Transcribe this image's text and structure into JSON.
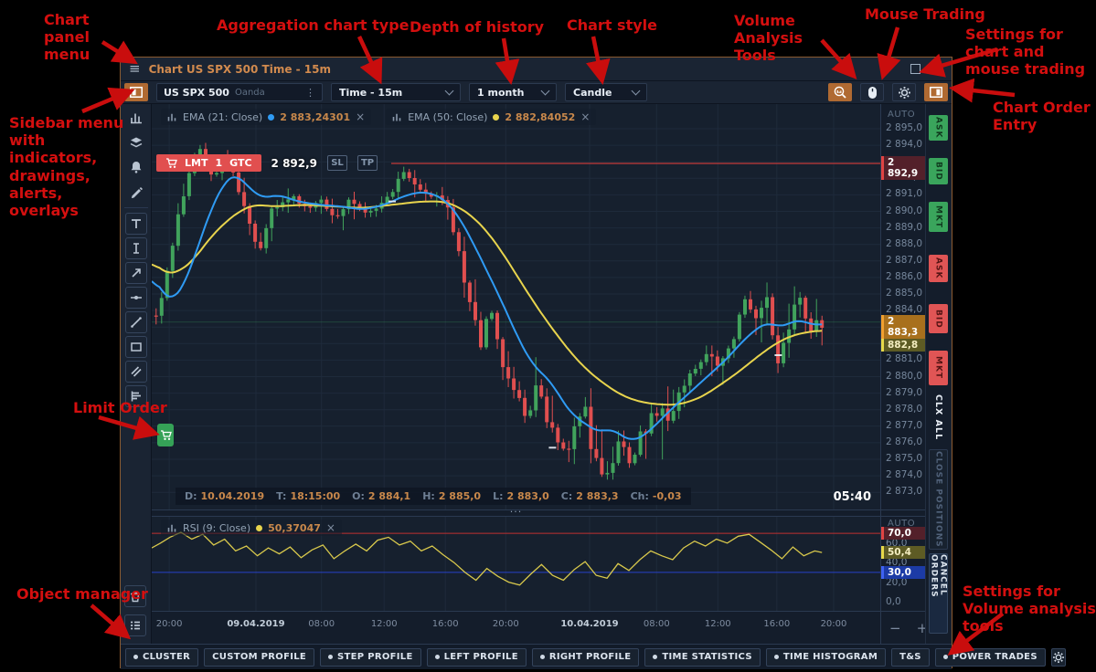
{
  "window": {
    "title": "Chart US SPX 500 Time - 15m"
  },
  "toolbar": {
    "symbol": {
      "name": "US SPX 500",
      "broker": "Oanda"
    },
    "aggregation": "Time - 15m",
    "history_depth": "1 month",
    "chart_style": "Candle"
  },
  "indicators": {
    "ema21": {
      "label": "EMA (21: Close)",
      "value": "2 883,24301",
      "color": "#2f9bf4"
    },
    "ema50": {
      "label": "EMA (50: Close)",
      "value": "2 882,84052",
      "color": "#e8d44d"
    },
    "rsi": {
      "label": "RSI (9: Close)",
      "value": "50,37047",
      "color": "#e8d44d"
    },
    "close_label": "×"
  },
  "order": {
    "type": "LMT",
    "qty": "1",
    "tif": "GTC",
    "price": "2 892,9",
    "sl": "SL",
    "tp": "TP"
  },
  "ohlc": [
    {
      "k": "D:",
      "v": "10.04.2019"
    },
    {
      "k": "T:",
      "v": "18:15:00"
    },
    {
      "k": "O:",
      "v": "2 884,1"
    },
    {
      "k": "H:",
      "v": "2 885,0"
    },
    {
      "k": "L:",
      "v": "2 883,0"
    },
    {
      "k": "C:",
      "v": "2 883,3"
    },
    {
      "k": "Ch:",
      "v": "-0,03"
    }
  ],
  "countdown": "05:40",
  "splitter_dots": "···",
  "price_axis": {
    "auto": "AUTO",
    "zoom_out": "−",
    "zoom_in": "+"
  },
  "rsi_axis": {
    "auto": "AUTO"
  },
  "trade_buttons": {
    "ask": "ASK",
    "bid": "BID",
    "mkt": "MKT",
    "clx": "CLX ALL",
    "close_positions": "CLOSE POSITIONS",
    "cancel_orders": "CANCEL ORDERS"
  },
  "volume_toolbar": [
    {
      "label": "CLUSTER",
      "dot": true
    },
    {
      "label": "CUSTOM PROFILE",
      "dot": false
    },
    {
      "label": "STEP PROFILE",
      "dot": true
    },
    {
      "label": "LEFT PROFILE",
      "dot": true
    },
    {
      "label": "RIGHT PROFILE",
      "dot": true
    },
    {
      "label": "TIME STATISTICS",
      "dot": true
    },
    {
      "label": "TIME HISTOGRAM",
      "dot": true
    },
    {
      "label": "T&S",
      "dot": false
    },
    {
      "label": "POWER TRADES",
      "dot": true
    }
  ],
  "annotations": {
    "color": "#d40f0f",
    "items": [
      {
        "text": "Chart panel menu"
      },
      {
        "text": "Aggregation chart type"
      },
      {
        "text": "Depth of history"
      },
      {
        "text": "Chart style"
      },
      {
        "text": "Volume Analysis Tools"
      },
      {
        "text": "Mouse Trading"
      },
      {
        "text": "Settings for chart and mouse trading"
      },
      {
        "text": "Sidebar menu with indicators, drawings, alerts, overlays"
      },
      {
        "text": "Chart Order Entry"
      },
      {
        "text": "Limit Order"
      },
      {
        "text": "Object manager"
      },
      {
        "text": "Settings for Volume analysis tools"
      }
    ]
  },
  "chart_data": {
    "type": "candlestick",
    "symbol": "US SPX 500",
    "timeframe": "15m",
    "ylim": [
      2872,
      2896
    ],
    "price_ticks": [
      "2 895,0",
      "2 894,0",
      "2 893,0",
      "2 892,0",
      "2 891,0",
      "2 890,0",
      "2 889,0",
      "2 888,0",
      "2 887,0",
      "2 886,0",
      "2 885,0",
      "2 884,0",
      "2 883,0",
      "2 882,0",
      "2 881,0",
      "2 880,0",
      "2 879,0",
      "2 878,0",
      "2 877,0",
      "2 876,0",
      "2 875,0",
      "2 874,0",
      "2 873,0"
    ],
    "price_tick_top": 2895,
    "order_line": {
      "price": 2892.9,
      "label": "2 892,9",
      "color": "#c23a3a"
    },
    "last": {
      "price": 2883.3,
      "label": "2 883,3",
      "color": "#3aa55c"
    },
    "ema_last": {
      "price": 2882.8,
      "label": "2 882,8"
    },
    "candles": {
      "seed": 11,
      "count": 122,
      "up_color": "#41a35c",
      "down_color": "#e04f4f",
      "path": [
        [
          0.0,
          2883.2
        ],
        [
          0.01,
          2884.0
        ],
        [
          0.022,
          2886.5
        ],
        [
          0.04,
          2890.5
        ],
        [
          0.055,
          2893.0
        ],
        [
          0.07,
          2894.0
        ],
        [
          0.085,
          2891.8
        ],
        [
          0.1,
          2893.6
        ],
        [
          0.115,
          2892.0
        ],
        [
          0.13,
          2889.8
        ],
        [
          0.148,
          2887.6
        ],
        [
          0.165,
          2890.2
        ],
        [
          0.185,
          2891.0
        ],
        [
          0.21,
          2890.2
        ],
        [
          0.235,
          2890.6
        ],
        [
          0.255,
          2889.6
        ],
        [
          0.275,
          2890.8
        ],
        [
          0.295,
          2889.6
        ],
        [
          0.32,
          2890.8
        ],
        [
          0.345,
          2892.2
        ],
        [
          0.37,
          2891.4
        ],
        [
          0.395,
          2890.8
        ],
        [
          0.415,
          2889.0
        ],
        [
          0.432,
          2885.6
        ],
        [
          0.45,
          2882.0
        ],
        [
          0.465,
          2883.8
        ],
        [
          0.482,
          2881.0
        ],
        [
          0.5,
          2878.6
        ],
        [
          0.515,
          2877.2
        ],
        [
          0.528,
          2879.6
        ],
        [
          0.545,
          2877.4
        ],
        [
          0.562,
          2875.2
        ],
        [
          0.578,
          2876.6
        ],
        [
          0.595,
          2877.8
        ],
        [
          0.61,
          2874.6
        ],
        [
          0.625,
          2873.6
        ],
        [
          0.64,
          2876.0
        ],
        [
          0.655,
          2874.8
        ],
        [
          0.672,
          2876.6
        ],
        [
          0.69,
          2878.0
        ],
        [
          0.708,
          2877.4
        ],
        [
          0.725,
          2879.2
        ],
        [
          0.745,
          2880.6
        ],
        [
          0.762,
          2881.4
        ],
        [
          0.78,
          2880.6
        ],
        [
          0.798,
          2882.2
        ],
        [
          0.815,
          2884.6
        ],
        [
          0.828,
          2882.8
        ],
        [
          0.842,
          2885.4
        ],
        [
          0.858,
          2881.0
        ],
        [
          0.872,
          2882.4
        ],
        [
          0.888,
          2884.8
        ],
        [
          0.905,
          2883.0
        ],
        [
          0.92,
          2883.4
        ]
      ]
    },
    "ema21": {
      "name": "EMA 21",
      "color": "#2f9bf4",
      "points": [
        [
          0.0,
          2886.2
        ],
        [
          0.015,
          2885.0
        ],
        [
          0.03,
          2884.6
        ],
        [
          0.045,
          2885.6
        ],
        [
          0.06,
          2887.4
        ],
        [
          0.08,
          2890.0
        ],
        [
          0.1,
          2891.8
        ],
        [
          0.115,
          2892.3
        ],
        [
          0.13,
          2891.6
        ],
        [
          0.15,
          2890.8
        ],
        [
          0.175,
          2891.0
        ],
        [
          0.2,
          2890.6
        ],
        [
          0.23,
          2890.4
        ],
        [
          0.26,
          2890.3
        ],
        [
          0.29,
          2890.1
        ],
        [
          0.32,
          2890.4
        ],
        [
          0.35,
          2891.0
        ],
        [
          0.375,
          2891.2
        ],
        [
          0.4,
          2890.8
        ],
        [
          0.42,
          2889.8
        ],
        [
          0.44,
          2888.2
        ],
        [
          0.46,
          2886.4
        ],
        [
          0.48,
          2884.6
        ],
        [
          0.5,
          2882.6
        ],
        [
          0.52,
          2880.9
        ],
        [
          0.535,
          2880.2
        ],
        [
          0.55,
          2879.6
        ],
        [
          0.565,
          2878.4
        ],
        [
          0.58,
          2877.6
        ],
        [
          0.6,
          2877.0
        ],
        [
          0.615,
          2876.6
        ],
        [
          0.63,
          2876.9
        ],
        [
          0.645,
          2876.4
        ],
        [
          0.66,
          2876.1
        ],
        [
          0.675,
          2876.4
        ],
        [
          0.69,
          2877.0
        ],
        [
          0.71,
          2877.9
        ],
        [
          0.73,
          2878.7
        ],
        [
          0.75,
          2879.5
        ],
        [
          0.77,
          2880.3
        ],
        [
          0.79,
          2881.1
        ],
        [
          0.81,
          2882.1
        ],
        [
          0.83,
          2882.9
        ],
        [
          0.845,
          2883.3
        ],
        [
          0.86,
          2883.0
        ],
        [
          0.875,
          2883.2
        ],
        [
          0.89,
          2883.5
        ],
        [
          0.905,
          2883.1
        ],
        [
          0.92,
          2883.2
        ]
      ]
    },
    "ema50": {
      "name": "EMA 50",
      "color": "#e8d44d",
      "points": [
        [
          0.0,
          2887.0
        ],
        [
          0.02,
          2886.2
        ],
        [
          0.04,
          2886.4
        ],
        [
          0.06,
          2887.2
        ],
        [
          0.08,
          2888.4
        ],
        [
          0.1,
          2889.3
        ],
        [
          0.12,
          2890.0
        ],
        [
          0.14,
          2890.4
        ],
        [
          0.17,
          2890.3
        ],
        [
          0.21,
          2890.4
        ],
        [
          0.25,
          2890.3
        ],
        [
          0.29,
          2890.2
        ],
        [
          0.33,
          2890.4
        ],
        [
          0.37,
          2890.6
        ],
        [
          0.4,
          2890.6
        ],
        [
          0.42,
          2890.3
        ],
        [
          0.44,
          2889.7
        ],
        [
          0.46,
          2888.8
        ],
        [
          0.48,
          2887.6
        ],
        [
          0.5,
          2886.2
        ],
        [
          0.52,
          2884.8
        ],
        [
          0.54,
          2883.5
        ],
        [
          0.56,
          2882.3
        ],
        [
          0.58,
          2881.2
        ],
        [
          0.6,
          2880.3
        ],
        [
          0.62,
          2879.6
        ],
        [
          0.64,
          2879.0
        ],
        [
          0.66,
          2878.6
        ],
        [
          0.68,
          2878.4
        ],
        [
          0.7,
          2878.3
        ],
        [
          0.72,
          2878.3
        ],
        [
          0.74,
          2878.5
        ],
        [
          0.76,
          2878.9
        ],
        [
          0.78,
          2879.5
        ],
        [
          0.8,
          2880.1
        ],
        [
          0.82,
          2880.8
        ],
        [
          0.84,
          2881.5
        ],
        [
          0.86,
          2882.1
        ],
        [
          0.88,
          2882.5
        ],
        [
          0.9,
          2882.7
        ],
        [
          0.92,
          2882.8
        ]
      ]
    },
    "trade_marks": [
      [
        0.085,
        2893.2
      ],
      [
        0.33,
        2890.6
      ],
      [
        0.55,
        2875.7
      ],
      [
        0.86,
        2881.3
      ]
    ],
    "time_ticks": [
      {
        "f": 0.024,
        "label": "20:00",
        "bold": false
      },
      {
        "f": 0.143,
        "label": "09.04.2019",
        "bold": true
      },
      {
        "f": 0.233,
        "label": "08:00",
        "bold": false
      },
      {
        "f": 0.319,
        "label": "12:00",
        "bold": false
      },
      {
        "f": 0.403,
        "label": "16:00",
        "bold": false
      },
      {
        "f": 0.486,
        "label": "20:00",
        "bold": false
      },
      {
        "f": 0.601,
        "label": "10.04.2019",
        "bold": true
      },
      {
        "f": 0.693,
        "label": "08:00",
        "bold": false
      },
      {
        "f": 0.777,
        "label": "12:00",
        "bold": false
      },
      {
        "f": 0.858,
        "label": "16:00",
        "bold": false
      },
      {
        "f": 0.936,
        "label": "20:00",
        "bold": false
      }
    ],
    "rsi": {
      "color": "#d9c94c",
      "overbought": {
        "v": 70,
        "label": "70,0",
        "color": "#c03030"
      },
      "current": {
        "v": 50.4,
        "label": "50,4"
      },
      "oversold": {
        "v": 30,
        "label": "30,0",
        "color": "#2742c8"
      },
      "gray_ticks": [
        {
          "v": 60,
          "label": "60,0"
        },
        {
          "v": 40,
          "label": "40,0"
        },
        {
          "v": 20,
          "label": "20,0"
        },
        {
          "v": 0,
          "label": "0,0"
        }
      ],
      "points": [
        [
          0.0,
          55
        ],
        [
          0.012,
          60
        ],
        [
          0.025,
          66
        ],
        [
          0.04,
          71
        ],
        [
          0.055,
          64
        ],
        [
          0.07,
          69
        ],
        [
          0.085,
          58
        ],
        [
          0.1,
          64
        ],
        [
          0.115,
          52
        ],
        [
          0.13,
          57
        ],
        [
          0.145,
          47
        ],
        [
          0.16,
          55
        ],
        [
          0.175,
          49
        ],
        [
          0.19,
          56
        ],
        [
          0.205,
          45
        ],
        [
          0.22,
          53
        ],
        [
          0.235,
          58
        ],
        [
          0.25,
          44
        ],
        [
          0.265,
          52
        ],
        [
          0.28,
          59
        ],
        [
          0.295,
          52
        ],
        [
          0.31,
          63
        ],
        [
          0.325,
          66
        ],
        [
          0.34,
          58
        ],
        [
          0.355,
          62
        ],
        [
          0.37,
          52
        ],
        [
          0.385,
          57
        ],
        [
          0.4,
          48
        ],
        [
          0.415,
          40
        ],
        [
          0.43,
          30
        ],
        [
          0.445,
          22
        ],
        [
          0.46,
          34
        ],
        [
          0.475,
          26
        ],
        [
          0.49,
          20
        ],
        [
          0.505,
          17
        ],
        [
          0.52,
          28
        ],
        [
          0.535,
          38
        ],
        [
          0.55,
          27
        ],
        [
          0.565,
          22
        ],
        [
          0.58,
          33
        ],
        [
          0.595,
          41
        ],
        [
          0.61,
          27
        ],
        [
          0.625,
          24
        ],
        [
          0.64,
          39
        ],
        [
          0.655,
          32
        ],
        [
          0.67,
          43
        ],
        [
          0.685,
          52
        ],
        [
          0.7,
          47
        ],
        [
          0.715,
          43
        ],
        [
          0.73,
          55
        ],
        [
          0.745,
          62
        ],
        [
          0.76,
          57
        ],
        [
          0.775,
          64
        ],
        [
          0.79,
          60
        ],
        [
          0.805,
          67
        ],
        [
          0.82,
          69
        ],
        [
          0.835,
          61
        ],
        [
          0.85,
          53
        ],
        [
          0.865,
          44
        ],
        [
          0.88,
          56
        ],
        [
          0.895,
          47
        ],
        [
          0.91,
          52
        ],
        [
          0.92,
          50.4
        ]
      ]
    }
  }
}
